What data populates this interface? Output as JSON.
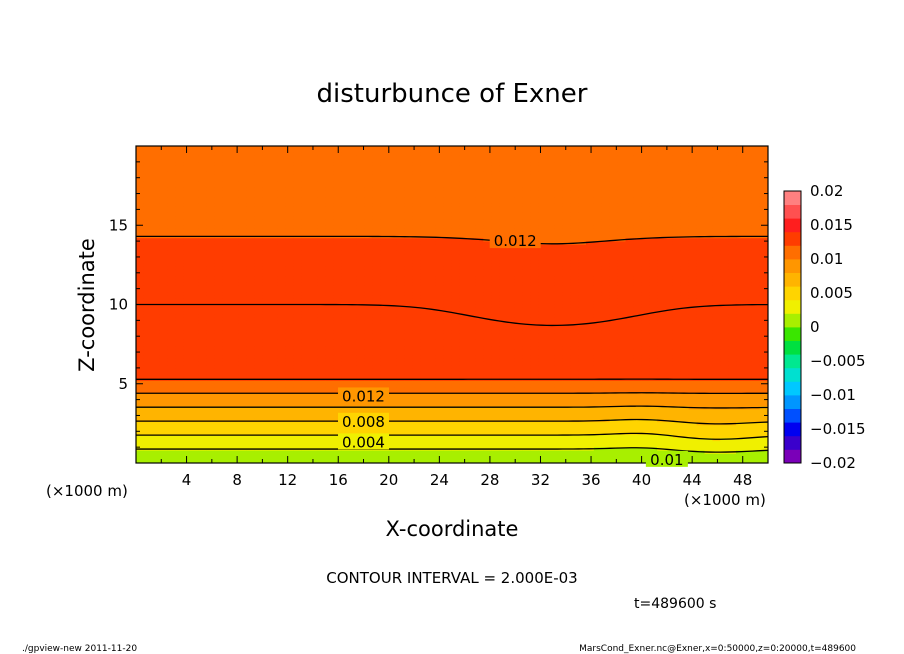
{
  "chart_data": {
    "type": "contour",
    "title": "disturbunce of Exner",
    "xlabel": "X-coordinate",
    "ylabel": "Z-coordinate",
    "x_unit": "(×1000 m)",
    "y_unit": "(×1000 m)",
    "xlim": [
      0,
      50
    ],
    "ylim": [
      0,
      20
    ],
    "x_ticks": [
      4,
      8,
      12,
      16,
      20,
      24,
      28,
      32,
      36,
      40,
      44,
      48
    ],
    "y_ticks": [
      5,
      10,
      15
    ],
    "colorbar": {
      "min": -0.02,
      "max": 0.02,
      "ticks": [
        "0.02",
        "0.015",
        "0.01",
        "0.005",
        "0",
        "−0.005",
        "−0.01",
        "−0.015",
        "−0.02"
      ],
      "colors": [
        "#7a00b8",
        "#3a00cc",
        "#0000f0",
        "#0050ff",
        "#0096ff",
        "#00c8ff",
        "#00e0d0",
        "#00e890",
        "#00e040",
        "#3ae600",
        "#a8ef00",
        "#f0f000",
        "#ffd400",
        "#ffb400",
        "#ff9600",
        "#ff6e00",
        "#ff3c00",
        "#ff1e1e",
        "#ff5050",
        "#ff8080"
      ]
    },
    "contour_interval_text": "CONTOUR INTERVAL = 2.000E-03",
    "contour_labels": [
      {
        "text": "0.012",
        "x": 30,
        "z": 14.0
      },
      {
        "text": "0.012",
        "x": 18,
        "z": 4.2
      },
      {
        "text": "0.008",
        "x": 18,
        "z": 2.6
      },
      {
        "text": "0.004",
        "x": 18,
        "z": 1.3
      },
      {
        "text": "0.01",
        "x": 42,
        "z": 0.2
      }
    ],
    "time_text": "t=489600 s"
  },
  "footer": {
    "left": "./gpview-new   2011-11-20",
    "right": "MarsCond_Exner.nc@Exner,x=0:50000,z=0:20000,t=489600"
  }
}
